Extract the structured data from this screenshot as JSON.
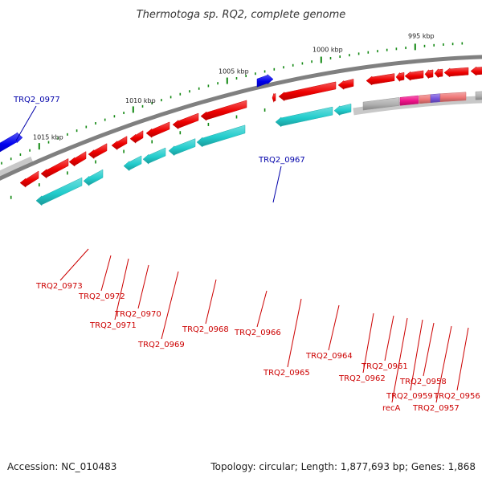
{
  "title": "Thermotoga sp. RQ2, complete genome",
  "footer": {
    "accession": "Accession: NC_010483",
    "summary": "Topology: circular; Length: 1,877,693 bp; Genes: 1,868"
  },
  "scale_labels": [
    "1015 kbp",
    "1010 kbp",
    "1005 kbp",
    "1000 kbp",
    "995 kbp"
  ],
  "colors": {
    "backbone": "#808080",
    "forward_cds": "#0000ee",
    "reverse_cds": "#ee0000",
    "rna_cyan": "#22cccc",
    "grey_feature": "#b0b0b0",
    "magenta": "#ee1188",
    "salmon": "#ee7777",
    "violet": "#7755dd",
    "tick": "#118811",
    "forward_label": "#0000aa",
    "reverse_label": "#cc0000"
  },
  "gene_labels": [
    {
      "text": "TRQ2_0977",
      "strand": "forward"
    },
    {
      "text": "TRQ2_0967",
      "strand": "forward"
    },
    {
      "text": "TRQ2_0973",
      "strand": "reverse"
    },
    {
      "text": "TRQ2_0972",
      "strand": "reverse"
    },
    {
      "text": "TRQ2_0970",
      "strand": "reverse"
    },
    {
      "text": "TRQ2_0971",
      "strand": "reverse"
    },
    {
      "text": "TRQ2_0969",
      "strand": "reverse"
    },
    {
      "text": "TRQ2_0968",
      "strand": "reverse"
    },
    {
      "text": "TRQ2_0966",
      "strand": "reverse"
    },
    {
      "text": "TRQ2_0965",
      "strand": "reverse"
    },
    {
      "text": "TRQ2_0964",
      "strand": "reverse"
    },
    {
      "text": "TRQ2_0962",
      "strand": "reverse"
    },
    {
      "text": "TRQ2_0961",
      "strand": "reverse"
    },
    {
      "text": "TRQ2_0958",
      "strand": "reverse"
    },
    {
      "text": "TRQ2_0959",
      "strand": "reverse"
    },
    {
      "text": "TRQ2_0956",
      "strand": "reverse"
    },
    {
      "text": "recA",
      "strand": "reverse"
    },
    {
      "text": "TRQ2_0957",
      "strand": "reverse"
    }
  ]
}
